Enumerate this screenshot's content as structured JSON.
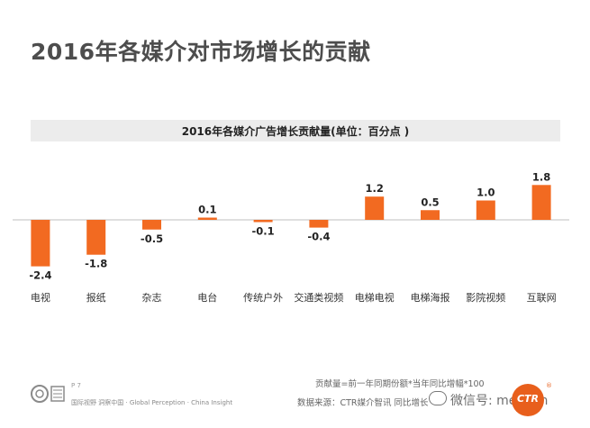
{
  "page": {
    "title": "2016年各媒介对市场增长的贡献"
  },
  "chart_data": {
    "type": "bar",
    "title": "2016年各媒介广告增长贡献量(单位：百分点 )",
    "categories": [
      "电视",
      "报纸",
      "杂志",
      "电台",
      "传统户外",
      "交通类视频",
      "电梯电视",
      "电梯海报",
      "影院视频",
      "互联网"
    ],
    "values": [
      -2.4,
      -1.8,
      -0.5,
      0.1,
      -0.1,
      -0.4,
      1.2,
      0.5,
      1.0,
      1.8
    ],
    "value_labels": [
      "-2.4",
      "-1.8",
      "-0.5",
      "0.1",
      "-0.1",
      "-0.4",
      "1.2",
      "0.5",
      "1.0",
      "1.8"
    ],
    "xlabel": "",
    "ylabel": "",
    "grid": false,
    "bar_color": "#f26a21"
  },
  "footer": {
    "page_number": "P 7",
    "tagline": "国际视野 洞察中国 · Global Perception · China Insight",
    "formula": "贡献量=前一年同期份额*当年同比增幅*100",
    "source": "数据来源：CTR媒介智讯   同比增长",
    "watermark": "微信号: mediam",
    "logo_text": "CTR"
  }
}
